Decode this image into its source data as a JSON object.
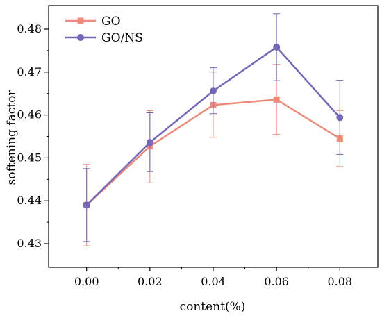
{
  "chart_data": {
    "type": "line",
    "title": "",
    "xlabel": "content(%)",
    "ylabel": "softening factor",
    "x": [
      0.0,
      0.02,
      0.04,
      0.06,
      0.08
    ],
    "x_tick_labels": [
      "0.00",
      "0.02",
      "0.04",
      "0.06",
      "0.08"
    ],
    "xlim": [
      -0.012,
      0.092
    ],
    "ylim": [
      0.4245,
      0.4855
    ],
    "y_ticks": [
      0.43,
      0.44,
      0.45,
      0.46,
      0.47,
      0.48
    ],
    "y_tick_labels": [
      "0.43",
      "0.44",
      "0.45",
      "0.46",
      "0.47",
      "0.48"
    ],
    "grid": false,
    "legend_position": "top-left",
    "series": [
      {
        "name": "GO",
        "marker": "square",
        "color": "#ec8a7c",
        "values": [
          0.439,
          0.4527,
          0.4623,
          0.4636,
          0.4545
        ],
        "error_low": [
          0.4295,
          0.4442,
          0.4548,
          0.4555,
          0.448
        ],
        "error_high": [
          0.4485,
          0.461,
          0.47,
          0.4718,
          0.461
        ]
      },
      {
        "name": "GO/NS",
        "marker": "circle",
        "color": "#7468b6",
        "values": [
          0.439,
          0.4536,
          0.4656,
          0.4758,
          0.4594
        ],
        "error_low": [
          0.4305,
          0.4468,
          0.4603,
          0.468,
          0.4508
        ],
        "error_high": [
          0.4475,
          0.4605,
          0.471,
          0.4836,
          0.4681
        ]
      }
    ]
  }
}
